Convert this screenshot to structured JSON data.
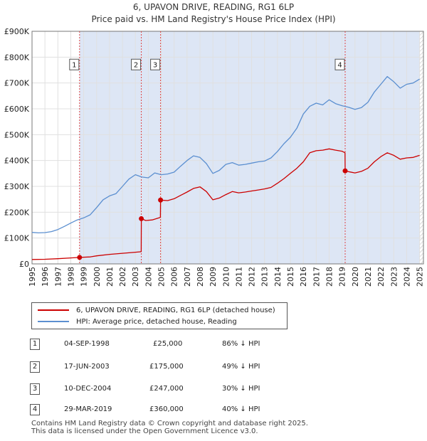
{
  "header": {
    "title": "6, UPAVON DRIVE, READING, RG1 6LP",
    "subtitle": "Price paid vs. HM Land Registry's House Price Index (HPI)"
  },
  "colors": {
    "price": "#cc0000",
    "hpi": "#5b8fd0",
    "shade": "#dde6f5"
  },
  "legend": {
    "price_label": "6, UPAVON DRIVE, READING, RG1 6LP (detached house)",
    "hpi_label": "HPI: Average price, detached house, Reading"
  },
  "transactions": [
    {
      "num": "1",
      "date": "04-SEP-1998",
      "price": "£25,000",
      "change": "86% ↓ HPI"
    },
    {
      "num": "2",
      "date": "17-JUN-2003",
      "price": "£175,000",
      "change": "49% ↓ HPI"
    },
    {
      "num": "3",
      "date": "10-DEC-2004",
      "price": "£247,000",
      "change": "30% ↓ HPI"
    },
    {
      "num": "4",
      "date": "29-MAR-2019",
      "price": "£360,000",
      "change": "40% ↓ HPI"
    }
  ],
  "footer": {
    "line1": "Contains HM Land Registry data © Crown copyright and database right 2025.",
    "line2": "This data is licensed under the Open Government Licence v3.0."
  },
  "chart_data": {
    "type": "line",
    "title": "6, UPAVON DRIVE, READING, RG1 6LP",
    "subtitle": "Price paid vs. HM Land Registry's House Price Index (HPI)",
    "xlabel": "",
    "ylabel": "",
    "xlim": [
      1995,
      2025.3
    ],
    "ylim": [
      0,
      900000
    ],
    "y_ticks": [
      0,
      100000,
      200000,
      300000,
      400000,
      500000,
      600000,
      700000,
      800000,
      900000
    ],
    "y_tick_labels": [
      "£0",
      "£100K",
      "£200K",
      "£300K",
      "£400K",
      "£500K",
      "£600K",
      "£700K",
      "£800K",
      "£900K"
    ],
    "x_ticks": [
      1995,
      1996,
      1997,
      1998,
      1999,
      2000,
      2001,
      2002,
      2003,
      2004,
      2005,
      2006,
      2007,
      2008,
      2009,
      2010,
      2011,
      2012,
      2013,
      2014,
      2015,
      2016,
      2017,
      2018,
      2019,
      2020,
      2021,
      2022,
      2023,
      2024,
      2025
    ],
    "x_tick_labels": [
      "1995",
      "1996",
      "1997",
      "1998",
      "1999",
      "2000",
      "2001",
      "2002",
      "2003",
      "2004",
      "2005",
      "2006",
      "2007",
      "2008",
      "2009",
      "2010",
      "2011",
      "2012",
      "2013",
      "2014",
      "2015",
      "2016",
      "2017",
      "2018",
      "2019",
      "2020",
      "2021",
      "2022",
      "2023",
      "2024",
      "2025"
    ],
    "grid": true,
    "hatched_from": 2025.0,
    "series": [
      {
        "name": "HPI: Average price, detached house, Reading",
        "color": "#5b8fd0",
        "points": [
          [
            1995.0,
            122000
          ],
          [
            1995.5,
            120000
          ],
          [
            1996.0,
            121000
          ],
          [
            1996.5,
            125000
          ],
          [
            1997.0,
            133000
          ],
          [
            1997.5,
            145000
          ],
          [
            1998.0,
            158000
          ],
          [
            1998.5,
            170000
          ],
          [
            1999.0,
            178000
          ],
          [
            1999.5,
            190000
          ],
          [
            2000.0,
            218000
          ],
          [
            2000.5,
            248000
          ],
          [
            2001.0,
            263000
          ],
          [
            2001.5,
            272000
          ],
          [
            2002.0,
            300000
          ],
          [
            2002.5,
            328000
          ],
          [
            2003.0,
            345000
          ],
          [
            2003.5,
            336000
          ],
          [
            2004.0,
            333000
          ],
          [
            2004.5,
            352000
          ],
          [
            2005.0,
            345000
          ],
          [
            2005.5,
            348000
          ],
          [
            2006.0,
            355000
          ],
          [
            2006.5,
            378000
          ],
          [
            2007.0,
            400000
          ],
          [
            2007.5,
            418000
          ],
          [
            2008.0,
            412000
          ],
          [
            2008.5,
            388000
          ],
          [
            2009.0,
            350000
          ],
          [
            2009.5,
            362000
          ],
          [
            2010.0,
            385000
          ],
          [
            2010.5,
            392000
          ],
          [
            2011.0,
            382000
          ],
          [
            2011.5,
            385000
          ],
          [
            2012.0,
            390000
          ],
          [
            2012.5,
            395000
          ],
          [
            2013.0,
            398000
          ],
          [
            2013.5,
            410000
          ],
          [
            2014.0,
            435000
          ],
          [
            2014.5,
            465000
          ],
          [
            2015.0,
            490000
          ],
          [
            2015.5,
            525000
          ],
          [
            2016.0,
            580000
          ],
          [
            2016.5,
            610000
          ],
          [
            2017.0,
            622000
          ],
          [
            2017.5,
            615000
          ],
          [
            2018.0,
            635000
          ],
          [
            2018.5,
            620000
          ],
          [
            2019.0,
            612000
          ],
          [
            2019.5,
            606000
          ],
          [
            2020.0,
            598000
          ],
          [
            2020.5,
            605000
          ],
          [
            2021.0,
            625000
          ],
          [
            2021.5,
            665000
          ],
          [
            2022.0,
            695000
          ],
          [
            2022.5,
            725000
          ],
          [
            2023.0,
            705000
          ],
          [
            2023.5,
            680000
          ],
          [
            2024.0,
            695000
          ],
          [
            2024.5,
            700000
          ],
          [
            2025.0,
            715000
          ]
        ]
      },
      {
        "name": "6, UPAVON DRIVE, READING, RG1 6LP (detached house)",
        "color": "#cc0000",
        "points": [
          [
            1995.0,
            17000
          ],
          [
            1996.0,
            18000
          ],
          [
            1997.0,
            20000
          ],
          [
            1998.0,
            23000
          ],
          [
            1998.68,
            25000
          ],
          [
            1999.5,
            27000
          ],
          [
            2000.0,
            31000
          ],
          [
            2001.0,
            37000
          ],
          [
            2002.0,
            41000
          ],
          [
            2003.0,
            45000
          ],
          [
            2003.45,
            47000
          ],
          [
            2003.46,
            175000
          ],
          [
            2003.8,
            168000
          ],
          [
            2004.3,
            170000
          ],
          [
            2004.94,
            180000
          ],
          [
            2004.95,
            247000
          ],
          [
            2005.5,
            245000
          ],
          [
            2006.0,
            252000
          ],
          [
            2006.5,
            265000
          ],
          [
            2007.0,
            278000
          ],
          [
            2007.5,
            292000
          ],
          [
            2008.0,
            298000
          ],
          [
            2008.5,
            280000
          ],
          [
            2009.0,
            248000
          ],
          [
            2009.5,
            255000
          ],
          [
            2010.0,
            268000
          ],
          [
            2010.5,
            280000
          ],
          [
            2011.0,
            275000
          ],
          [
            2011.5,
            278000
          ],
          [
            2012.0,
            282000
          ],
          [
            2012.5,
            286000
          ],
          [
            2013.0,
            290000
          ],
          [
            2013.5,
            296000
          ],
          [
            2014.0,
            312000
          ],
          [
            2014.5,
            330000
          ],
          [
            2015.0,
            350000
          ],
          [
            2015.5,
            370000
          ],
          [
            2016.0,
            395000
          ],
          [
            2016.5,
            430000
          ],
          [
            2017.0,
            438000
          ],
          [
            2017.5,
            440000
          ],
          [
            2018.0,
            445000
          ],
          [
            2018.5,
            440000
          ],
          [
            2019.0,
            436000
          ],
          [
            2019.23,
            430000
          ],
          [
            2019.24,
            360000
          ],
          [
            2019.6,
            356000
          ],
          [
            2020.0,
            352000
          ],
          [
            2020.5,
            358000
          ],
          [
            2021.0,
            370000
          ],
          [
            2021.5,
            395000
          ],
          [
            2022.0,
            415000
          ],
          [
            2022.5,
            430000
          ],
          [
            2023.0,
            420000
          ],
          [
            2023.5,
            405000
          ],
          [
            2024.0,
            410000
          ],
          [
            2024.5,
            412000
          ],
          [
            2025.0,
            420000
          ]
        ]
      }
    ],
    "events": [
      {
        "label": "1",
        "x": 1998.68,
        "price": 25000
      },
      {
        "label": "2",
        "x": 2003.46,
        "price": 175000
      },
      {
        "label": "3",
        "x": 2004.95,
        "price": 247000
      },
      {
        "label": "4",
        "x": 2019.24,
        "price": 360000
      }
    ],
    "label_box_value": 770000
  }
}
